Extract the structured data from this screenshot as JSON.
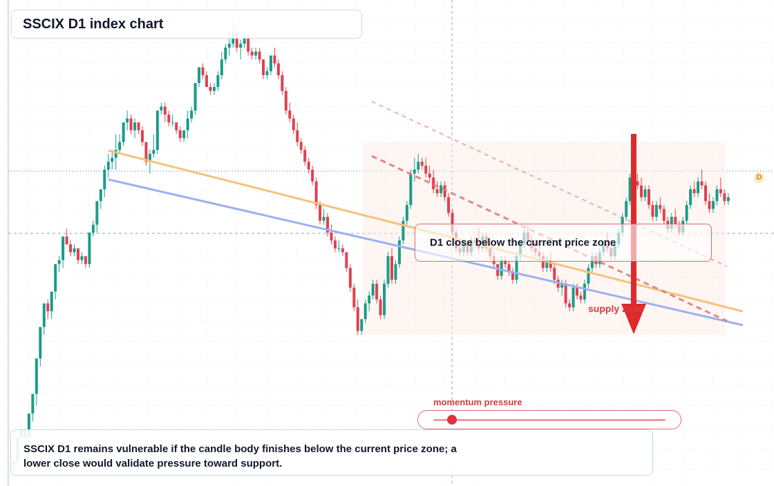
{
  "title": "SSCIX D1 index chart",
  "callout": "D1 close below the current price zone",
  "supply_label": "supply zone",
  "momentum": {
    "label": "momentum pressure",
    "level": 0.08
  },
  "note": {
    "line1": "SSCIX D1 remains vulnerable if the candle body finishes below the current price zone; a",
    "line2": "lower close would validate pressure toward support."
  },
  "price_badge": "D",
  "colors": {
    "up": "#1a9c8a",
    "down": "#e0414f",
    "support_line": "#9bb0f0",
    "resistance_line": "#f6c27a",
    "channel": "#e07b7b",
    "arrow": "#dd2a2a",
    "zone": "#fbeee6"
  },
  "chart_data": {
    "type": "candlestick",
    "title": "SSCIX D1 index chart",
    "grid": true,
    "candles": [
      [
        95.2,
        95.3,
        95.0,
        95.3
      ],
      [
        95.3,
        95.9,
        95.2,
        95.9
      ],
      [
        95.9,
        96.1,
        95.7,
        96.1
      ],
      [
        96.1,
        96.1,
        95.8,
        95.9
      ],
      [
        95.9,
        96.5,
        95.8,
        96.5
      ],
      [
        96.5,
        97.0,
        96.3,
        97.0
      ],
      [
        97.0,
        97.9,
        96.7,
        97.9
      ],
      [
        97.9,
        98.7,
        97.7,
        98.7
      ],
      [
        98.7,
        99.3,
        98.5,
        99.3
      ],
      [
        99.3,
        99.4,
        98.9,
        99.1
      ],
      [
        99.1,
        99.6,
        98.9,
        99.6
      ],
      [
        99.6,
        100.3,
        99.4,
        100.3
      ],
      [
        100.3,
        100.5,
        100.1,
        100.4
      ],
      [
        100.4,
        101.0,
        100.2,
        101.0
      ],
      [
        101.0,
        101.2,
        100.8,
        100.8
      ],
      [
        100.8,
        100.9,
        100.5,
        100.6
      ],
      [
        100.6,
        100.8,
        100.5,
        100.7
      ],
      [
        100.7,
        100.7,
        100.3,
        100.4
      ],
      [
        100.4,
        100.6,
        100.3,
        100.5
      ],
      [
        100.5,
        100.5,
        100.2,
        100.3
      ],
      [
        100.3,
        101.1,
        100.2,
        101.1
      ],
      [
        101.1,
        101.4,
        101.0,
        101.3
      ],
      [
        101.3,
        101.9,
        101.1,
        101.9
      ],
      [
        101.9,
        102.2,
        101.7,
        102.2
      ],
      [
        102.2,
        102.8,
        102.0,
        102.7
      ],
      [
        102.7,
        103.1,
        102.5,
        102.9
      ],
      [
        102.9,
        103.2,
        102.7,
        103.0
      ],
      [
        103.0,
        103.6,
        102.7,
        103.2
      ],
      [
        103.2,
        103.6,
        103.1,
        103.4
      ],
      [
        103.4,
        103.9,
        103.3,
        103.9
      ],
      [
        103.9,
        104.2,
        103.7,
        104.0
      ],
      [
        104.0,
        104.1,
        103.6,
        103.7
      ],
      [
        103.7,
        104.0,
        103.5,
        103.9
      ],
      [
        103.9,
        103.9,
        103.6,
        103.7
      ],
      [
        103.7,
        103.8,
        103.3,
        103.4
      ],
      [
        103.4,
        103.4,
        102.8,
        102.9
      ],
      [
        102.9,
        103.2,
        102.6,
        103.1
      ],
      [
        103.1,
        103.6,
        103.0,
        103.2
      ],
      [
        103.2,
        104.2,
        103.1,
        104.2
      ],
      [
        104.2,
        104.4,
        104.1,
        104.3
      ],
      [
        104.3,
        104.4,
        103.9,
        104.1
      ],
      [
        104.1,
        104.2,
        103.8,
        103.9
      ],
      [
        103.9,
        104.1,
        103.8,
        103.9
      ],
      [
        103.9,
        103.9,
        103.6,
        103.7
      ],
      [
        103.7,
        103.8,
        103.4,
        103.5
      ],
      [
        103.5,
        103.7,
        103.4,
        103.7
      ],
      [
        103.7,
        104.2,
        103.5,
        104.0
      ],
      [
        104.0,
        104.3,
        103.9,
        104.2
      ],
      [
        104.2,
        104.9,
        104.1,
        104.9
      ],
      [
        104.9,
        105.3,
        104.8,
        105.3
      ],
      [
        105.3,
        105.4,
        105.0,
        105.1
      ],
      [
        105.1,
        105.2,
        104.8,
        104.8
      ],
      [
        104.8,
        104.9,
        104.6,
        104.7
      ],
      [
        104.7,
        104.9,
        104.6,
        104.8
      ],
      [
        104.8,
        105.2,
        104.7,
        105.1
      ],
      [
        105.1,
        105.7,
        105.0,
        105.5
      ],
      [
        105.5,
        105.9,
        105.4,
        105.8
      ],
      [
        105.8,
        106.2,
        105.6,
        105.9
      ],
      [
        105.9,
        106.5,
        105.8,
        106.2
      ],
      [
        106.2,
        106.3,
        105.7,
        105.8
      ],
      [
        105.8,
        106.0,
        105.5,
        105.9
      ],
      [
        105.9,
        106.2,
        105.8,
        106.1
      ],
      [
        106.1,
        106.1,
        105.6,
        105.7
      ],
      [
        105.7,
        105.8,
        105.5,
        105.6
      ],
      [
        105.6,
        105.8,
        105.5,
        105.7
      ],
      [
        105.7,
        105.8,
        105.4,
        105.5
      ],
      [
        105.5,
        105.5,
        105.0,
        105.1
      ],
      [
        105.1,
        105.3,
        105.0,
        105.2
      ],
      [
        105.2,
        105.6,
        105.1,
        105.6
      ],
      [
        105.6,
        105.8,
        105.3,
        105.4
      ],
      [
        105.4,
        105.5,
        105.0,
        105.1
      ],
      [
        105.1,
        105.2,
        104.6,
        104.7
      ],
      [
        104.7,
        104.8,
        104.1,
        104.2
      ],
      [
        104.2,
        104.4,
        103.9,
        104.0
      ],
      [
        104.0,
        104.1,
        103.6,
        103.7
      ],
      [
        103.7,
        103.9,
        103.3,
        103.4
      ],
      [
        103.4,
        103.5,
        103.1,
        103.2
      ],
      [
        103.2,
        103.3,
        102.8,
        102.9
      ],
      [
        102.9,
        103.0,
        102.6,
        102.7
      ],
      [
        102.7,
        102.8,
        102.3,
        102.4
      ],
      [
        102.4,
        102.5,
        101.7,
        101.8
      ],
      [
        101.8,
        101.9,
        101.3,
        101.4
      ],
      [
        101.4,
        101.7,
        101.3,
        101.5
      ],
      [
        101.5,
        101.6,
        101.0,
        101.1
      ],
      [
        101.1,
        101.3,
        100.8,
        100.9
      ],
      [
        100.9,
        101.0,
        100.6,
        100.7
      ],
      [
        100.7,
        100.9,
        100.6,
        100.7
      ],
      [
        100.7,
        100.8,
        100.5,
        100.6
      ],
      [
        100.6,
        100.6,
        100.1,
        100.2
      ],
      [
        100.2,
        100.3,
        99.6,
        99.7
      ],
      [
        99.7,
        99.8,
        99.1,
        99.2
      ],
      [
        99.2,
        99.4,
        98.5,
        98.6
      ],
      [
        98.6,
        98.9,
        98.5,
        98.9
      ],
      [
        98.9,
        99.4,
        98.8,
        99.3
      ],
      [
        99.3,
        99.6,
        99.1,
        99.5
      ],
      [
        99.5,
        99.9,
        99.4,
        99.8
      ],
      [
        99.8,
        99.9,
        99.3,
        99.4
      ],
      [
        99.4,
        99.5,
        98.9,
        99.0
      ],
      [
        99.0,
        99.9,
        98.9,
        99.8
      ],
      [
        99.8,
        100.6,
        99.7,
        100.5
      ],
      [
        100.5,
        100.7,
        99.8,
        99.9
      ],
      [
        99.9,
        100.4,
        99.8,
        100.3
      ],
      [
        100.3,
        101.0,
        100.2,
        100.9
      ],
      [
        100.9,
        101.5,
        100.8,
        101.4
      ],
      [
        101.4,
        101.9,
        101.3,
        101.8
      ],
      [
        101.8,
        102.7,
        101.7,
        102.6
      ],
      [
        102.6,
        103.0,
        102.4,
        102.7
      ],
      [
        102.7,
        103.1,
        102.6,
        102.9
      ],
      [
        102.9,
        103.0,
        102.7,
        102.8
      ],
      [
        102.8,
        103.0,
        102.5,
        102.6
      ],
      [
        102.6,
        102.8,
        102.4,
        102.5
      ],
      [
        102.5,
        102.7,
        102.1,
        102.2
      ],
      [
        102.2,
        102.4,
        102.0,
        102.1
      ],
      [
        102.1,
        102.4,
        102.0,
        102.3
      ],
      [
        102.3,
        102.4,
        101.9,
        102.0
      ],
      [
        102.0,
        102.1,
        101.5,
        101.6
      ],
      [
        101.6,
        101.7,
        101.0,
        101.1
      ],
      [
        101.1,
        101.2,
        100.6,
        100.7
      ],
      [
        100.7,
        100.8,
        100.5,
        100.6
      ],
      [
        100.6,
        100.9,
        100.5,
        100.8
      ],
      [
        100.8,
        100.9,
        100.5,
        100.6
      ],
      [
        100.6,
        101.0,
        100.5,
        100.9
      ],
      [
        100.9,
        101.0,
        100.7,
        100.8
      ],
      [
        100.8,
        101.2,
        100.6,
        100.7
      ],
      [
        100.7,
        101.1,
        100.6,
        101.0
      ],
      [
        101.0,
        101.1,
        100.6,
        100.7
      ],
      [
        100.7,
        100.8,
        100.4,
        100.5
      ],
      [
        100.5,
        100.6,
        100.2,
        100.3
      ],
      [
        100.3,
        100.3,
        99.9,
        100.0
      ],
      [
        100.0,
        100.5,
        99.9,
        100.4
      ],
      [
        100.4,
        100.5,
        100.2,
        100.3
      ],
      [
        100.3,
        100.4,
        100.0,
        100.1
      ],
      [
        100.1,
        100.2,
        99.8,
        99.9
      ],
      [
        99.9,
        100.6,
        99.8,
        100.5
      ],
      [
        100.5,
        100.9,
        100.4,
        100.8
      ],
      [
        100.8,
        101.2,
        100.7,
        101.1
      ],
      [
        101.1,
        101.3,
        100.8,
        100.9
      ],
      [
        100.9,
        101.0,
        100.6,
        100.7
      ],
      [
        100.7,
        100.9,
        100.5,
        100.6
      ],
      [
        100.6,
        100.8,
        100.4,
        100.5
      ],
      [
        100.5,
        100.6,
        100.1,
        100.2
      ],
      [
        100.2,
        100.5,
        100.1,
        100.4
      ],
      [
        100.4,
        100.6,
        100.1,
        100.2
      ],
      [
        100.2,
        100.3,
        99.8,
        99.9
      ],
      [
        99.9,
        100.0,
        99.6,
        99.7
      ],
      [
        99.7,
        99.9,
        99.5,
        99.8
      ],
      [
        99.8,
        99.9,
        99.2,
        99.3
      ],
      [
        99.3,
        99.4,
        99.1,
        99.2
      ],
      [
        99.2,
        99.8,
        99.1,
        99.7
      ],
      [
        99.7,
        99.8,
        99.4,
        99.5
      ],
      [
        99.5,
        99.6,
        99.3,
        99.4
      ],
      [
        99.4,
        99.9,
        99.3,
        99.8
      ],
      [
        99.8,
        100.3,
        99.7,
        100.2
      ],
      [
        100.2,
        100.6,
        100.1,
        100.5
      ],
      [
        100.5,
        100.6,
        100.2,
        100.3
      ],
      [
        100.3,
        100.7,
        100.2,
        100.6
      ],
      [
        100.6,
        100.9,
        100.5,
        100.8
      ],
      [
        100.8,
        101.1,
        100.6,
        100.7
      ],
      [
        100.7,
        100.8,
        100.4,
        100.5
      ],
      [
        100.5,
        100.9,
        100.4,
        100.8
      ],
      [
        100.8,
        101.2,
        100.7,
        101.1
      ],
      [
        101.1,
        101.6,
        101.0,
        101.5
      ],
      [
        101.5,
        102.0,
        101.4,
        101.9
      ],
      [
        101.9,
        102.6,
        101.8,
        102.5
      ],
      [
        102.5,
        102.8,
        102.3,
        102.4
      ],
      [
        102.4,
        102.6,
        102.2,
        102.3
      ],
      [
        102.3,
        102.5,
        101.9,
        102.0
      ],
      [
        102.0,
        102.3,
        101.9,
        102.2
      ],
      [
        102.2,
        102.3,
        101.7,
        101.8
      ],
      [
        101.8,
        101.9,
        101.4,
        101.5
      ],
      [
        101.5,
        101.9,
        101.4,
        101.8
      ],
      [
        101.8,
        102.0,
        101.6,
        101.7
      ],
      [
        101.7,
        101.8,
        101.3,
        101.4
      ],
      [
        101.4,
        101.5,
        101.1,
        101.2
      ],
      [
        101.2,
        101.6,
        101.1,
        101.5
      ],
      [
        101.5,
        101.7,
        101.2,
        101.3
      ],
      [
        101.3,
        101.4,
        101.0,
        101.1
      ],
      [
        101.1,
        101.5,
        101.0,
        101.4
      ],
      [
        101.4,
        101.9,
        101.3,
        101.8
      ],
      [
        101.8,
        102.3,
        101.7,
        102.2
      ],
      [
        102.2,
        102.4,
        102.0,
        102.1
      ],
      [
        102.1,
        102.5,
        102.0,
        102.4
      ],
      [
        102.4,
        102.7,
        102.2,
        102.3
      ],
      [
        102.3,
        102.4,
        101.8,
        101.9
      ],
      [
        101.9,
        102.1,
        101.6,
        101.7
      ],
      [
        101.7,
        102.0,
        101.6,
        101.9
      ],
      [
        101.9,
        102.3,
        101.8,
        102.2
      ],
      [
        102.2,
        102.5,
        102.0,
        102.1
      ],
      [
        102.1,
        102.2,
        101.8,
        101.9
      ],
      [
        101.9,
        102.1,
        101.8,
        102.0
      ]
    ],
    "annotations": [
      "D1 close below the current price zone",
      "supply zone",
      "momentum pressure"
    ]
  }
}
